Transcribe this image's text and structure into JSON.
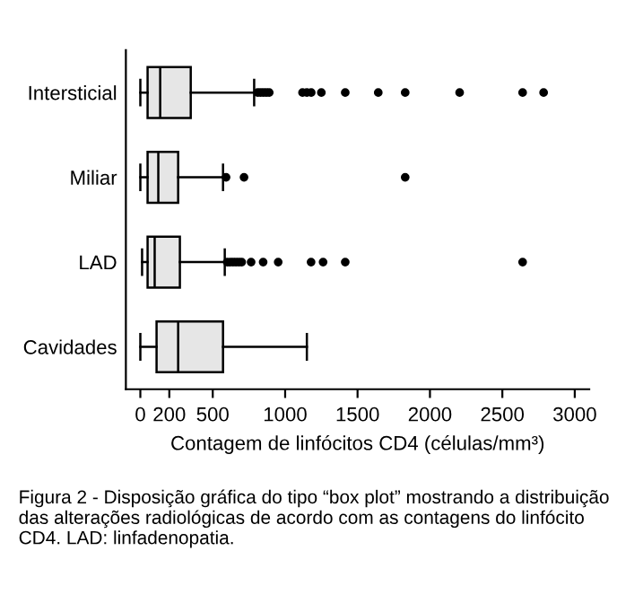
{
  "chart_data": {
    "type": "box",
    "orientation": "horizontal",
    "categories": [
      "Intersticial",
      "Miliar",
      "LAD",
      "Cavidades"
    ],
    "boxes": [
      {
        "low": 0,
        "q1": 50,
        "median": 137,
        "q3": 348,
        "high": 786,
        "outliers": [
          810,
          830,
          850,
          870,
          890,
          1120,
          1150,
          1180,
          1250,
          1415,
          1643,
          1829,
          2205,
          2640,
          2785
        ]
      },
      {
        "low": 0,
        "q1": 50,
        "median": 124,
        "q3": 261,
        "high": 571,
        "outliers": [
          592,
          716,
          1829
        ]
      },
      {
        "low": 12,
        "q1": 50,
        "median": 99,
        "q3": 273,
        "high": 583,
        "outliers": [
          600,
          620,
          640,
          660,
          680,
          700,
          765,
          848,
          952,
          1179,
          1262,
          1415,
          2640
        ]
      },
      {
        "low": 0,
        "q1": 112,
        "median": 261,
        "q3": 571,
        "high": 1150
      }
    ],
    "color": "#e6e6e6",
    "xlabel": "Contagem de linfócitos CD4 (células/mm³)",
    "xlim": [
      -100,
      3100
    ],
    "xticks": [
      0,
      200,
      500,
      1000,
      1500,
      2000,
      2500,
      3000
    ],
    "grid": false,
    "marker": "circle",
    "annotations": [
      "Figura 2 - Disposição gráfica do tipo “box plot” mostrando a distribuição das alterações radiológicas de acordo com as contagens do linfócito CD4. LAD: linfadenopatia."
    ]
  }
}
